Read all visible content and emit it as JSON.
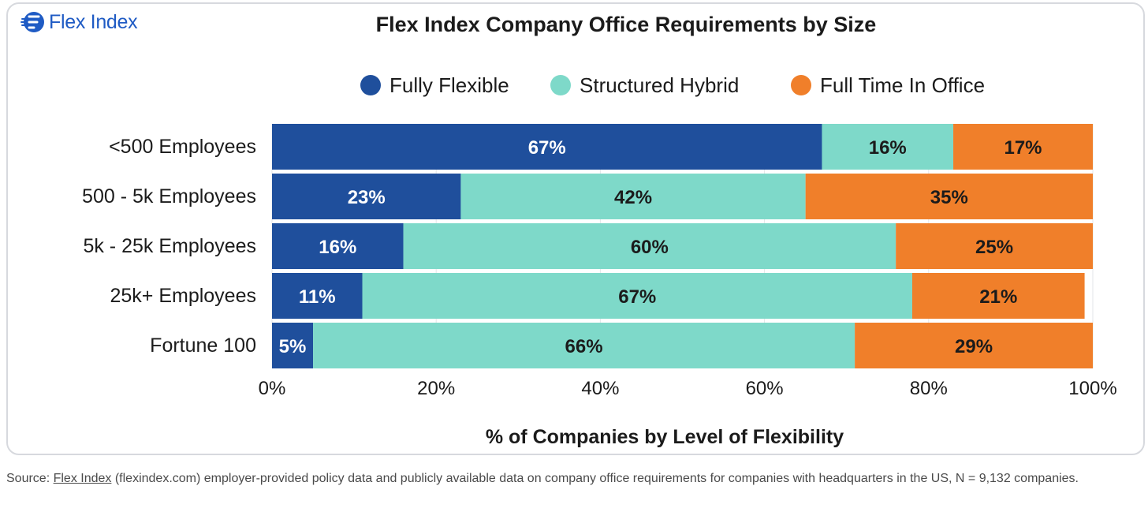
{
  "brand": {
    "name": "Flex Index"
  },
  "colors": {
    "fully_flexible": "#1f4f9c",
    "structured_hybrid": "#7ed9c9",
    "full_time_in_office": "#f07f2a",
    "label_light": "#ffffff",
    "label_dark": "#1b1b1b"
  },
  "chart_data": {
    "type": "bar",
    "orientation": "horizontal",
    "stacked": true,
    "title": "Flex Index Company Office Requirements by Size",
    "xlabel": "% of Companies by Level of Flexibility",
    "ylabel": "",
    "xlim": [
      0,
      100
    ],
    "x_ticks": [
      "0%",
      "20%",
      "40%",
      "60%",
      "80%",
      "100%"
    ],
    "x_tick_values": [
      0,
      20,
      40,
      60,
      80,
      100
    ],
    "legend_position": "top",
    "grid": true,
    "categories": [
      "<500 Employees",
      "500 - 5k Employees",
      "5k - 25k Employees",
      "25k+ Employees",
      "Fortune 100"
    ],
    "series": [
      {
        "name": "Fully Flexible",
        "values": [
          67,
          23,
          16,
          11,
          5
        ],
        "labels": [
          "67%",
          "23%",
          "16%",
          "11%",
          "5%"
        ]
      },
      {
        "name": "Structured Hybrid",
        "values": [
          16,
          42,
          60,
          67,
          66
        ],
        "labels": [
          "16%",
          "42%",
          "60%",
          "67%",
          "66%"
        ]
      },
      {
        "name": "Full Time In Office",
        "values": [
          17,
          35,
          25,
          21,
          29
        ],
        "labels": [
          "17%",
          "35%",
          "25%",
          "21%",
          "29%"
        ]
      }
    ]
  },
  "source": {
    "prefix": "Source: ",
    "link_text": "Flex Index",
    "rest": " (flexindex.com) employer-provided policy data and publicly available data on company office requirements for companies with headquarters in the US, N = 9,132 companies."
  }
}
